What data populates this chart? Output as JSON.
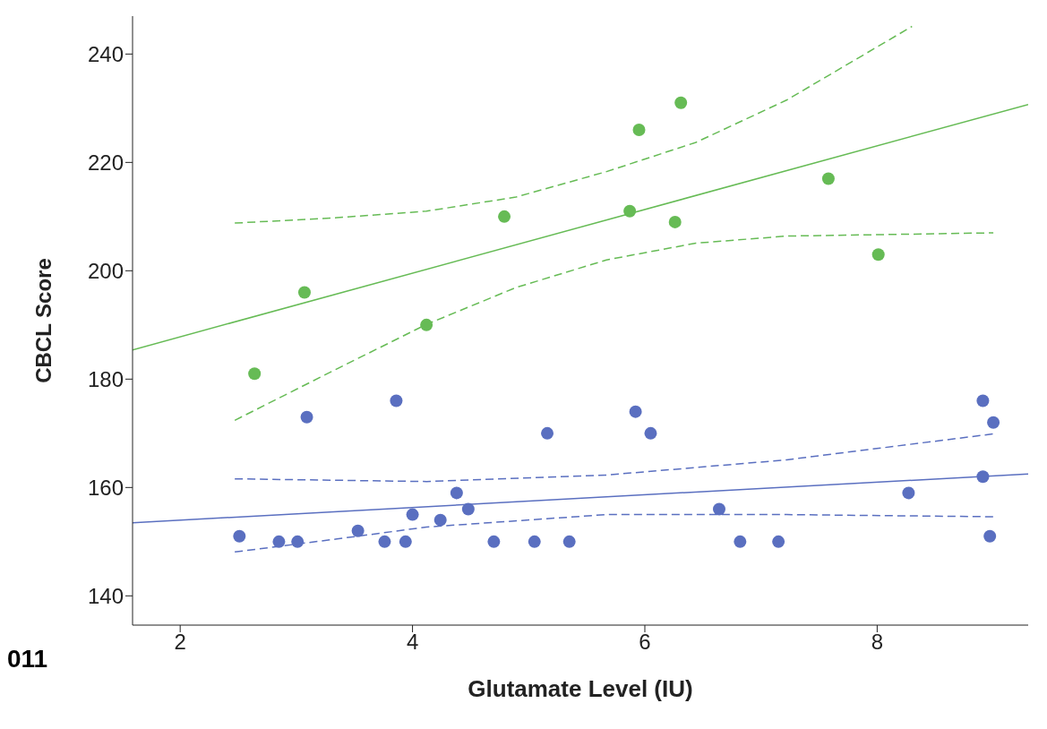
{
  "chart_data": {
    "type": "scatter",
    "xlabel": "Glutamate Level (IU)",
    "ylabel": "CBCL Score",
    "annotations": [
      "011"
    ],
    "xlim": [
      1.59,
      9.3
    ],
    "ylim": [
      134.6,
      247
    ],
    "xticks": [
      2,
      4,
      6,
      8
    ],
    "yticks": [
      140,
      160,
      180,
      200,
      220,
      240
    ],
    "grid": false,
    "marker": "circle",
    "series": [
      {
        "type": "line",
        "color": "#66bb55",
        "line_style": "dashed",
        "marker": "none",
        "x": [
          2.47,
          3.35,
          4.12,
          4.89,
          5.67,
          6.44,
          7.22,
          8.3
        ],
        "values": [
          208.8,
          209.8,
          211,
          213.6,
          218.3,
          223.7,
          231.5,
          245.1
        ]
      },
      {
        "type": "line",
        "color": "#66bb55",
        "line_style": "dashed",
        "marker": "none",
        "x": [
          2.47,
          3.35,
          4.12,
          4.89,
          5.67,
          6.44,
          7.22,
          9.0
        ],
        "values": [
          172.4,
          181.9,
          190.1,
          196.9,
          202,
          205.1,
          206.4,
          207
        ]
      },
      {
        "type": "line",
        "color": "#66bb55",
        "line_style": "solid",
        "marker": "none",
        "x": [
          1.59,
          9.3
        ],
        "values": [
          185.4,
          230.7
        ]
      },
      {
        "type": "line",
        "color": "#5a6fc0",
        "line_style": "dashed",
        "marker": "none",
        "x": [
          2.47,
          4.12,
          5.67,
          7.22,
          9.0
        ],
        "values": [
          161.6,
          161.1,
          162.3,
          165.1,
          169.9
        ]
      },
      {
        "type": "line",
        "color": "#5a6fc0",
        "line_style": "dashed",
        "marker": "none",
        "x": [
          2.47,
          3.35,
          4.12,
          5.67,
          7.22,
          9.0
        ],
        "values": [
          148.1,
          150.5,
          152.7,
          155.0,
          155.0,
          154.6
        ]
      },
      {
        "type": "line",
        "color": "#5a6fc0",
        "line_style": "solid",
        "marker": "none",
        "x": [
          1.59,
          9.3
        ],
        "values": [
          153.5,
          162.5
        ]
      },
      {
        "color": "#66bb55",
        "x": [
          2.64,
          3.07,
          4.12,
          4.79,
          5.87,
          5.95,
          6.26,
          6.31,
          7.58,
          8.01
        ],
        "values": [
          181,
          196,
          190,
          210,
          211,
          226,
          209,
          231,
          217,
          203
        ]
      },
      {
        "color": "#5a6fc0",
        "x": [
          2.51,
          2.85,
          3.01,
          3.09,
          3.53,
          3.76,
          3.86,
          3.94,
          4.0,
          4.24,
          4.38,
          4.48,
          4.7,
          5.05,
          5.16,
          5.35,
          5.92,
          6.05,
          6.64,
          6.82,
          7.15,
          8.27,
          8.91,
          8.91,
          8.97,
          9.0
        ],
        "values": [
          151,
          150,
          150,
          173,
          152,
          150,
          176,
          150,
          155,
          154,
          159,
          156,
          150,
          150,
          170,
          150,
          174,
          170,
          156,
          150,
          150,
          159,
          176,
          162,
          151,
          172
        ]
      }
    ]
  }
}
